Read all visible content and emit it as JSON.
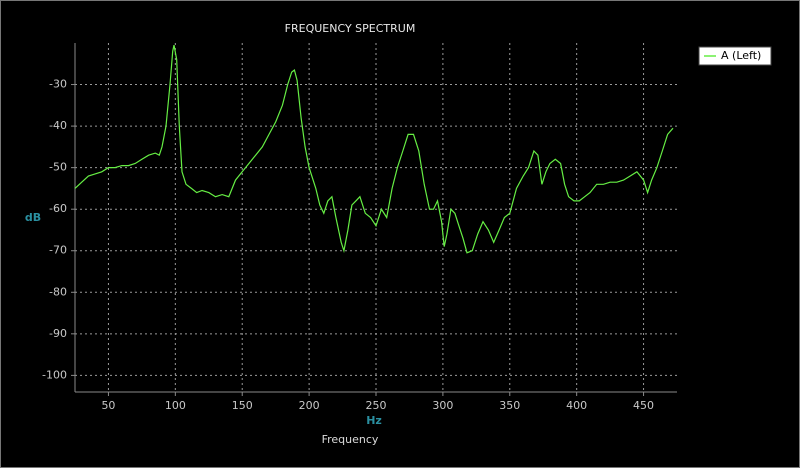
{
  "chart_data": {
    "type": "line",
    "title": "FREQUENCY SPECTRUM",
    "x_axis_unit": "Hz",
    "x_axis_label": "Frequency",
    "y_axis_label": "dB",
    "xlim": [
      25,
      475
    ],
    "ylim": [
      -104,
      -20
    ],
    "xticks": [
      50,
      100,
      150,
      200,
      250,
      300,
      350,
      400,
      450
    ],
    "yticks": [
      -30,
      -40,
      -50,
      -60,
      -70,
      -80,
      -90,
      -100
    ],
    "grid": true,
    "legend": "right",
    "x": [
      25,
      30,
      35,
      40,
      45,
      50,
      55,
      60,
      65,
      70,
      75,
      80,
      85,
      88,
      90,
      93,
      96,
      98,
      99,
      101,
      103,
      105,
      108,
      112,
      116,
      120,
      125,
      130,
      135,
      140,
      145,
      150,
      155,
      160,
      165,
      170,
      175,
      180,
      184,
      187,
      189,
      191,
      194,
      197,
      200,
      205,
      208,
      211,
      214,
      217,
      220,
      224,
      226,
      229,
      232,
      235,
      238,
      242,
      246,
      250,
      254,
      258,
      262,
      266,
      270,
      274,
      278,
      282,
      286,
      290,
      293,
      296,
      299,
      301,
      303,
      306,
      309,
      312,
      315,
      318,
      322,
      326,
      330,
      334,
      338,
      342,
      346,
      350,
      355,
      360,
      364,
      368,
      371,
      374,
      377,
      380,
      384,
      388,
      391,
      394,
      398,
      402,
      406,
      410,
      415,
      420,
      425,
      430,
      435,
      440,
      445,
      450,
      453,
      456,
      460,
      464,
      468,
      472
    ],
    "series": [
      {
        "name": "A (Left)",
        "color": "#66ee44",
        "values": [
          -55,
          -53.5,
          -52,
          -51.5,
          -51,
          -50,
          -50,
          -49.5,
          -49.5,
          -49,
          -48,
          -47,
          -46.5,
          -47,
          -45,
          -40,
          -30,
          -22,
          -20.5,
          -24,
          -40,
          -51,
          -54,
          -55,
          -56,
          -55.5,
          -56,
          -57,
          -56.5,
          -57,
          -53,
          -51,
          -49,
          -47,
          -45,
          -42,
          -39,
          -35,
          -30,
          -27,
          -26.5,
          -29,
          -38,
          -45,
          -50,
          -55,
          -59,
          -61,
          -58,
          -57,
          -62,
          -68,
          -70,
          -65,
          -59,
          -58,
          -57,
          -61,
          -62,
          -64,
          -60,
          -62,
          -55,
          -50,
          -46,
          -42,
          -42,
          -46,
          -54,
          -60,
          -60,
          -58,
          -63,
          -69,
          -66,
          -60,
          -61,
          -64,
          -67,
          -70.5,
          -70,
          -66,
          -63,
          -65,
          -68,
          -65,
          -62,
          -61,
          -55,
          -52,
          -50,
          -46,
          -47,
          -54,
          -51,
          -49,
          -48,
          -49,
          -54,
          -57,
          -58,
          -58,
          -57,
          -56,
          -54,
          -54,
          -53.5,
          -53.5,
          -53,
          -52,
          -51,
          -53,
          -56,
          -53,
          -50,
          -46,
          -42,
          -40.5
        ]
      }
    ]
  }
}
